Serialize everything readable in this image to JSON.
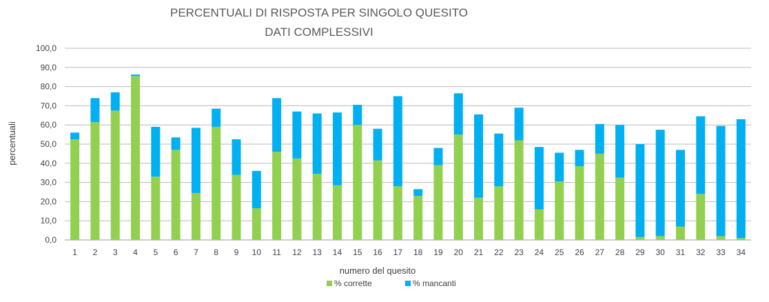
{
  "chart_data": {
    "type": "bar",
    "stacked": true,
    "title": [
      "PERCENTUALI DI RISPOSTA PER SINGOLO QUESITO",
      "DATI COMPLESSIVI"
    ],
    "xlabel": "numero del quesito",
    "ylabel": "percentuali",
    "ylim": [
      0,
      100
    ],
    "yticks": [
      "0,0",
      "10,0",
      "20,0",
      "30,0",
      "40,0",
      "50,0",
      "60,0",
      "70,0",
      "80,0",
      "90,0",
      "100,0"
    ],
    "grid": true,
    "legend_position": "bottom",
    "categories": [
      "1",
      "2",
      "3",
      "4",
      "5",
      "6",
      "7",
      "8",
      "9",
      "10",
      "11",
      "12",
      "13",
      "14",
      "15",
      "16",
      "17",
      "18",
      "19",
      "20",
      "21",
      "22",
      "23",
      "24",
      "25",
      "26",
      "27",
      "28",
      "29",
      "30",
      "31",
      "32",
      "33",
      "34"
    ],
    "series": [
      {
        "name": "% corrette",
        "color": "#92d050",
        "values": [
          52.5,
          61.5,
          67.5,
          85.5,
          33.0,
          47.0,
          24.5,
          59.0,
          34.0,
          16.5,
          46.0,
          42.5,
          34.5,
          28.5,
          60.0,
          41.5,
          28.0,
          23.0,
          39.0,
          55.0,
          22.0,
          28.0,
          52.0,
          16.0,
          30.5,
          38.5,
          45.0,
          32.5,
          1.5,
          2.0,
          7.0,
          24.0,
          2.0,
          1.0
        ]
      },
      {
        "name": "% mancanti",
        "color": "#00b0f0",
        "values": [
          3.5,
          12.5,
          9.5,
          0.8,
          26.0,
          6.5,
          34.0,
          9.5,
          18.5,
          19.5,
          28.0,
          24.5,
          31.5,
          38.0,
          10.5,
          16.5,
          47.0,
          3.5,
          9.0,
          21.5,
          43.5,
          27.5,
          17.0,
          32.5,
          15.0,
          8.5,
          15.5,
          27.5,
          48.5,
          55.5,
          40.0,
          40.5,
          57.5,
          62.0
        ]
      }
    ]
  }
}
